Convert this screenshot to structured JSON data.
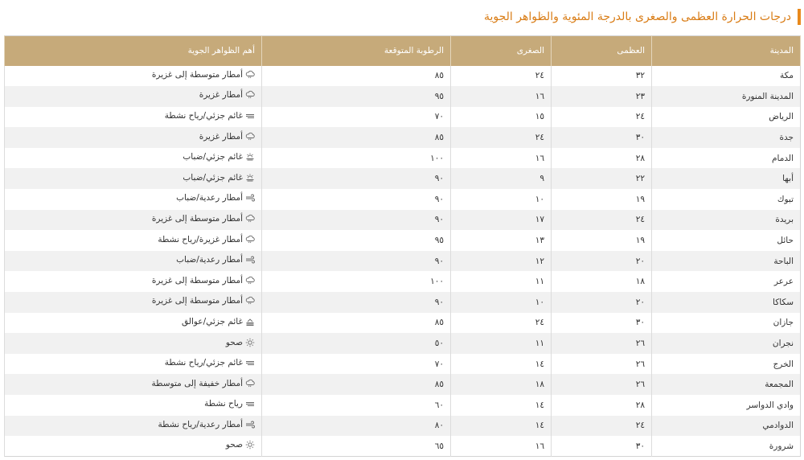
{
  "page": {
    "title": "درجات الحرارة العظمى والصغرى بالدرجة المئوية والظواهر الجوية",
    "accent_color": "#e8891c",
    "header_color": "#c6aa7a"
  },
  "table": {
    "headers": {
      "city": "المدينة",
      "max": "العظمى",
      "min": "الصغرى",
      "humidity": "الرطوبة المتوقعة",
      "weather": "أهم الظواهر الجوية"
    },
    "rows": [
      {
        "city": "مكة",
        "max": "٣٢",
        "min": "٢٤",
        "humidity": "٨٥",
        "weather": "أمطار متوسطة إلى غزيرة",
        "icon": "rain-cloud-icon"
      },
      {
        "city": "المدينة المنورة",
        "max": "٢٣",
        "min": "١٦",
        "humidity": "٩٥",
        "weather": "أمطار غزيرة",
        "icon": "rain-cloud-icon"
      },
      {
        "city": "الرياض",
        "max": "٢٤",
        "min": "١٥",
        "humidity": "٧٠",
        "weather": "غائم جزئي/رياح نشطة",
        "icon": "wind-icon"
      },
      {
        "city": "جدة",
        "max": "٣٠",
        "min": "٢٤",
        "humidity": "٨٥",
        "weather": "أمطار غزيرة",
        "icon": "rain-cloud-icon"
      },
      {
        "city": "الدمام",
        "max": "٢٨",
        "min": "١٦",
        "humidity": "١٠٠",
        "weather": "غائم جزئي/ضباب",
        "icon": "sun-fog-icon"
      },
      {
        "city": "أبها",
        "max": "٢٢",
        "min": "٩",
        "humidity": "٩٠",
        "weather": "غائم جزئي/ضباب",
        "icon": "sun-fog-icon"
      },
      {
        "city": "تبوك",
        "max": "١٩",
        "min": "١٠",
        "humidity": "٩٠",
        "weather": "أمطار رعدية/ضباب",
        "icon": "wind-gust-icon"
      },
      {
        "city": "بريدة",
        "max": "٢٤",
        "min": "١٧",
        "humidity": "٩٠",
        "weather": "أمطار متوسطة إلى غزيرة",
        "icon": "rain-cloud-icon"
      },
      {
        "city": "حائل",
        "max": "١٩",
        "min": "١٣",
        "humidity": "٩٥",
        "weather": "أمطار غزيرة/رياح نشطة",
        "icon": "rain-cloud-icon"
      },
      {
        "city": "الباحة",
        "max": "٢٠",
        "min": "١٢",
        "humidity": "٩٠",
        "weather": "أمطار رعدية/ضباب",
        "icon": "wind-gust-icon"
      },
      {
        "city": "عرعر",
        "max": "١٨",
        "min": "١١",
        "humidity": "١٠٠",
        "weather": "أمطار متوسطة إلى غزيرة",
        "icon": "rain-cloud-icon"
      },
      {
        "city": "سكاكا",
        "max": "٢٠",
        "min": "١٠",
        "humidity": "٩٠",
        "weather": "أمطار متوسطة إلى غزيرة",
        "icon": "rain-cloud-icon"
      },
      {
        "city": "جازان",
        "max": "٣٠",
        "min": "٢٤",
        "humidity": "٨٥",
        "weather": "غائم جزئي/عوالق",
        "icon": "dust-icon"
      },
      {
        "city": "نجران",
        "max": "٢٦",
        "min": "١١",
        "humidity": "٥٠",
        "weather": "صحو",
        "icon": "sun-icon"
      },
      {
        "city": "الخرج",
        "max": "٢٦",
        "min": "١٤",
        "humidity": "٧٠",
        "weather": "غائم جزئي/رياح نشطة",
        "icon": "wind-icon"
      },
      {
        "city": "المجمعة",
        "max": "٢٦",
        "min": "١٨",
        "humidity": "٨٥",
        "weather": "أمطار خفيفة إلى متوسطة",
        "icon": "rain-cloud-icon"
      },
      {
        "city": "وادي الدواسر",
        "max": "٢٨",
        "min": "١٤",
        "humidity": "٦٠",
        "weather": "رياح نشطة",
        "icon": "wind-icon"
      },
      {
        "city": "الدوادمي",
        "max": "٢٤",
        "min": "١٤",
        "humidity": "٨٠",
        "weather": "أمطار رعدية/رياح نشطة",
        "icon": "wind-gust-icon"
      },
      {
        "city": "شرورة",
        "max": "٣٠",
        "min": "١٦",
        "humidity": "٦٥",
        "weather": "صحو",
        "icon": "sun-icon"
      }
    ]
  }
}
